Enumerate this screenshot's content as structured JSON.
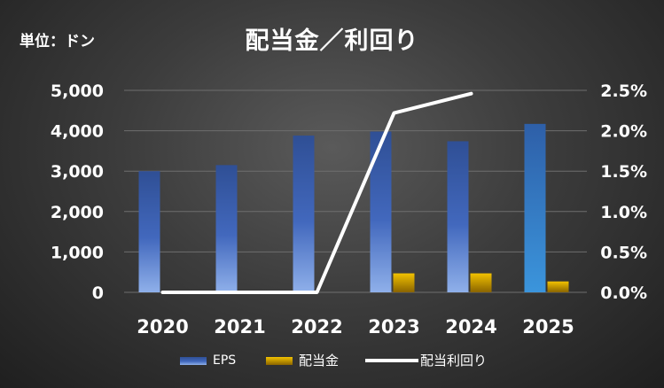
{
  "unit_label": "単位：ドン",
  "chart_data": {
    "type": "bar",
    "title": "配当金／利回り",
    "categories": [
      "2020",
      "2021",
      "2022",
      "2023",
      "2024",
      "2025"
    ],
    "series": [
      {
        "name": "EPS",
        "type": "bar",
        "axis": "left",
        "values": [
          3000,
          3150,
          3880,
          3980,
          3740,
          4170
        ],
        "color": "#3f63b5"
      },
      {
        "name": "配当金",
        "type": "bar",
        "axis": "left",
        "values": [
          0,
          0,
          0,
          470,
          470,
          270
        ],
        "color": "#d9a300"
      },
      {
        "name": "配当利回り",
        "type": "line",
        "axis": "right",
        "values": [
          0.0,
          0.0,
          0.0,
          2.22,
          2.46,
          null
        ],
        "color": "#ffffff"
      }
    ],
    "y_left": {
      "ylim": [
        0,
        5000
      ],
      "ticks": [
        "0",
        "1,000",
        "2,000",
        "3,000",
        "4,000",
        "5,000"
      ]
    },
    "y_right": {
      "ylim": [
        0,
        2.5
      ],
      "ticks": [
        "0.0%",
        "0.5%",
        "1.0%",
        "1.5%",
        "2.0%",
        "2.5%"
      ]
    },
    "grid": true,
    "legend_position": "bottom"
  }
}
